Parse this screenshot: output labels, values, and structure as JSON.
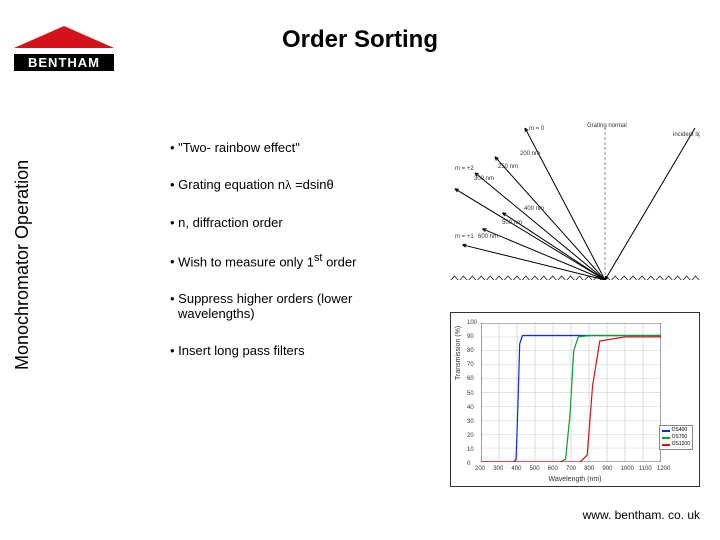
{
  "title": "Order Sorting",
  "logo": {
    "brand": "BENTHAM",
    "tri_color": "#d4121a"
  },
  "sidelabel": "Monochromator Operation",
  "bullets": [
    {
      "text_html": "\"Two- rainbow effect\""
    },
    {
      "text_html": "Grating equation n<span style='font-family:serif'>λ</span> =dsinθ"
    },
    {
      "text_html": "n, diffraction order"
    },
    {
      "text_html": "Wish to measure only 1<sup>st</sup> order"
    },
    {
      "text_html": "Suppress higher orders (lower wavelengths)"
    },
    {
      "text_html": "Insert long pass filters"
    }
  ],
  "footer": "www. bentham. co. uk",
  "grating_diagram": {
    "type": "diagram",
    "background_color": "#ffffff",
    "grating_color": "#000000",
    "normal_color": "#888888",
    "incident_color": "#000000",
    "labels": {
      "normal": "Grating normal",
      "incident": "incident light",
      "m0": "m = 0",
      "order_top_m": "m = +2",
      "order_mid_m": "m = +1",
      "top_wavelengths": [
        "300 nm",
        "250 nm",
        "200 nm"
      ],
      "mid_wavelengths": [
        "600 nm",
        "500 nm",
        "400 nm"
      ]
    },
    "label_fontsize": 6,
    "ray_origin": [
      0.62,
      1.0
    ],
    "normal_end": [
      0.62,
      0.05
    ],
    "incident_end": [
      0.98,
      0.05
    ],
    "m0_end": [
      0.3,
      0.05
    ],
    "orders": [
      {
        "group": "top",
        "ends": [
          [
            0.02,
            0.43
          ],
          [
            0.1,
            0.33
          ],
          [
            0.18,
            0.23
          ]
        ],
        "colors": [
          "#000",
          "#000",
          "#000"
        ]
      },
      {
        "group": "mid",
        "ends": [
          [
            0.05,
            0.78
          ],
          [
            0.13,
            0.68
          ],
          [
            0.21,
            0.58
          ]
        ],
        "colors": [
          "#000",
          "#000",
          "#000"
        ]
      }
    ],
    "grating_y": 1.0,
    "grating_teeth": 28
  },
  "filter_chart": {
    "type": "line",
    "background_color": "#ffffff",
    "grid_color": "#bac4c9",
    "axis_color": "#333333",
    "xlabel": "Wavelength (nm)",
    "ylabel": "Transmission (%)",
    "label_fontsize": 7,
    "tick_fontsize": 6,
    "xlim": [
      200,
      1200
    ],
    "ylim": [
      0,
      100
    ],
    "xticks": [
      200,
      300,
      400,
      500,
      600,
      700,
      800,
      900,
      1000,
      1100,
      1200
    ],
    "yticks": [
      0,
      10,
      20,
      30,
      40,
      50,
      60,
      70,
      80,
      90,
      100
    ],
    "line_width": 1.2,
    "series": [
      {
        "name": "OS400",
        "color": "#0a2fd6",
        "x": [
          200,
          380,
          395,
          405,
          415,
          430,
          500,
          700,
          1000,
          1200
        ],
        "y": [
          0,
          0,
          2,
          40,
          85,
          91,
          91,
          91,
          91,
          91
        ]
      },
      {
        "name": "OS700",
        "color": "#0aa02a",
        "x": [
          200,
          640,
          670,
          695,
          715,
          740,
          800,
          1000,
          1200
        ],
        "y": [
          0,
          0,
          2,
          35,
          80,
          90,
          91,
          91,
          91
        ]
      },
      {
        "name": "OS1200",
        "color": "#d4121a",
        "x": [
          200,
          700,
          750,
          790,
          820,
          860,
          1000,
          1200
        ],
        "y": [
          0,
          0,
          0,
          5,
          55,
          87,
          90,
          90
        ]
      }
    ],
    "legend_position": "right"
  }
}
